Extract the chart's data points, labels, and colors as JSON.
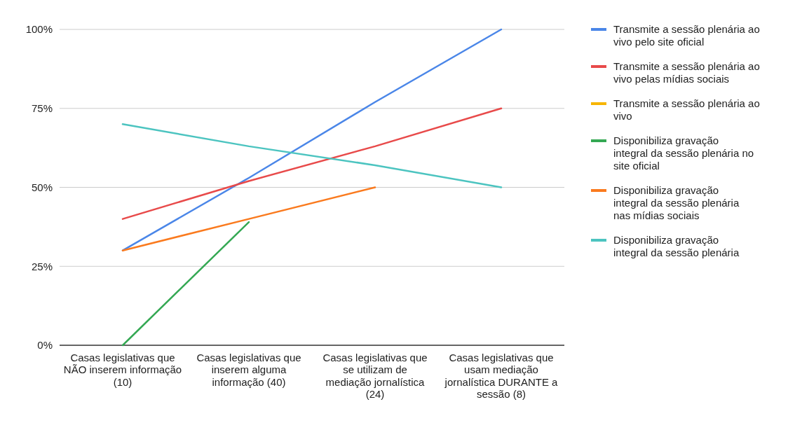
{
  "chart_data": {
    "type": "line",
    "categories": [
      "Casas legislativas que NÃO inserem informação (10)",
      "Casas legislativas que inserem alguma informação (40)",
      "Casas legislativas que se utilizam de mediação jornalística (24)",
      "Casas legislativas que usam mediação jornalística DURANTE a sessão (8)"
    ],
    "series": [
      {
        "name": "Transmite a sessão plenária ao vivo pelo site oficial",
        "color": "#4a86e8",
        "values": [
          30,
          53,
          77,
          100
        ]
      },
      {
        "name": "Transmite a sessão plenária ao vivo pelas mídias sociais",
        "color": "#e84a4a",
        "values": [
          40,
          52,
          63,
          75
        ]
      },
      {
        "name": "Transmite a sessão plenária ao vivo",
        "color": "#f7b500",
        "values": [
          null,
          null,
          null,
          null
        ]
      },
      {
        "name": "Disponibiliza gravação integral da sessão plenária no site oficial",
        "color": "#34a853",
        "values": [
          0,
          39,
          null,
          null
        ]
      },
      {
        "name": "Disponibiliza gravação integral da sessão plenária nas mídias sociais",
        "color": "#fa7a1e",
        "values": [
          30,
          40,
          50,
          null
        ]
      },
      {
        "name": "Disponibiliza gravação integral da sessão plenária",
        "color": "#4cc4c0",
        "values": [
          70,
          63,
          57,
          50
        ]
      }
    ],
    "ylim": [
      0,
      100
    ],
    "yticks": [
      {
        "value": 0,
        "label": "0%"
      },
      {
        "value": 25,
        "label": "25%"
      },
      {
        "value": 50,
        "label": "50%"
      },
      {
        "value": 75,
        "label": "75%"
      },
      {
        "value": 100,
        "label": "100%"
      }
    ],
    "grid": "y",
    "legend": "right",
    "marker": "none",
    "line_style": "solid"
  }
}
